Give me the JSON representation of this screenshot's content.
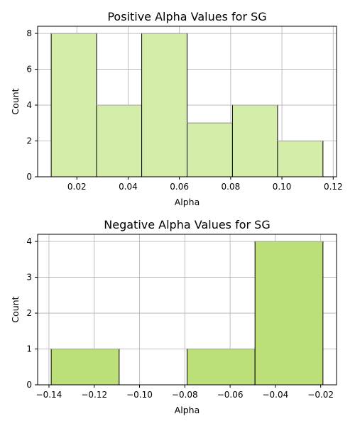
{
  "chart_data": [
    {
      "type": "bar",
      "title": "Positive Alpha Values for SG",
      "xlabel": "Alpha",
      "ylabel": "Count",
      "bin_edges": [
        0.01,
        0.0277,
        0.0453,
        0.063,
        0.0807,
        0.0983,
        0.116
      ],
      "values": [
        8,
        4,
        8,
        3,
        4,
        2
      ],
      "xlim": [
        0.0047,
        0.1213
      ],
      "ylim": [
        0,
        8.4
      ],
      "xticks": [
        0.02,
        0.04,
        0.06,
        0.08,
        0.1,
        0.12
      ],
      "xtick_labels": [
        "0.02",
        "0.04",
        "0.06",
        "0.08",
        "0.10",
        "0.12"
      ],
      "yticks": [
        0,
        2,
        4,
        6,
        8
      ],
      "ytick_labels": [
        "0",
        "2",
        "4",
        "6",
        "8"
      ],
      "grid": true,
      "color": "#d4eda8"
    },
    {
      "type": "bar",
      "title": "Negative Alpha Values for SG",
      "xlabel": "Alpha",
      "ylabel": "Count",
      "bin_edges": [
        -0.139,
        -0.109,
        -0.079,
        -0.049,
        -0.019
      ],
      "values": [
        1,
        0,
        1,
        4
      ],
      "xlim": [
        -0.145,
        -0.013
      ],
      "ylim": [
        0,
        4.2
      ],
      "xticks": [
        -0.14,
        -0.12,
        -0.1,
        -0.08,
        -0.06,
        -0.04,
        -0.02
      ],
      "xtick_labels": [
        "−0.14",
        "−0.12",
        "−0.10",
        "−0.08",
        "−0.06",
        "−0.04",
        "−0.02"
      ],
      "yticks": [
        0,
        1,
        2,
        3,
        4
      ],
      "ytick_labels": [
        "0",
        "1",
        "2",
        "3",
        "4"
      ],
      "grid": true,
      "color": "#bce077"
    }
  ]
}
